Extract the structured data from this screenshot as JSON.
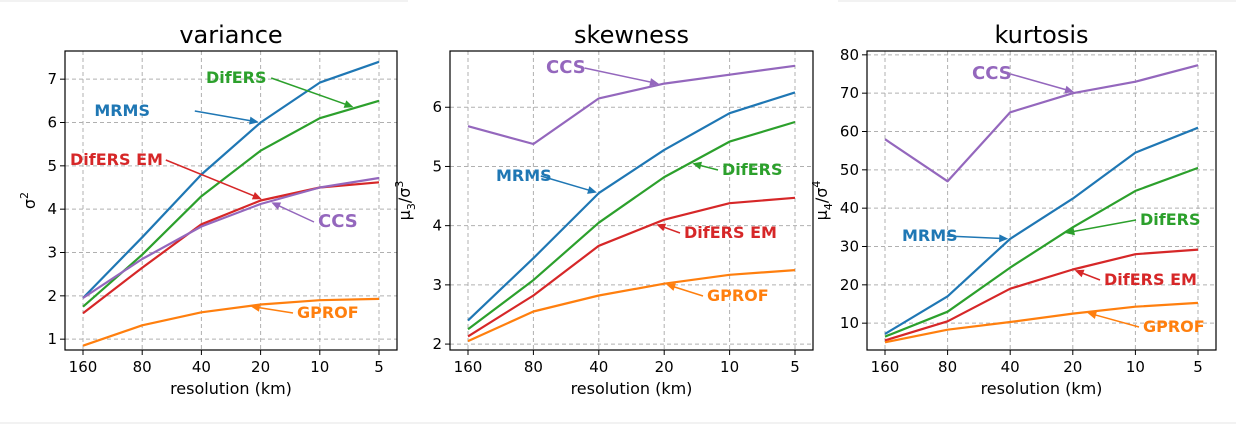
{
  "chart_data": [
    {
      "type": "line",
      "title": "variance",
      "xlabel": "resolution (km)",
      "ylabel": "σ2",
      "categories": [
        "160",
        "80",
        "40",
        "20",
        "10",
        "5"
      ],
      "ylim": [
        0.75,
        7.65
      ],
      "yticks": [
        1,
        2,
        3,
        4,
        5,
        6,
        7
      ],
      "grid": true,
      "series": [
        {
          "name": "MRMS",
          "color": "#1f77b4",
          "values": [
            1.95,
            3.35,
            4.8,
            6.0,
            6.92,
            7.4
          ]
        },
        {
          "name": "DifERS",
          "color": "#2ca02c",
          "values": [
            1.75,
            2.95,
            4.3,
            5.35,
            6.1,
            6.5
          ]
        },
        {
          "name": "DifERS EM",
          "color": "#d62728",
          "values": [
            1.6,
            2.65,
            3.65,
            4.2,
            4.5,
            4.62
          ]
        },
        {
          "name": "CCS",
          "color": "#9467bd",
          "values": [
            1.95,
            2.85,
            3.6,
            4.12,
            4.5,
            4.72
          ]
        },
        {
          "name": "GPROF",
          "color": "#ff7f0e",
          "values": [
            0.85,
            1.32,
            1.62,
            1.8,
            1.9,
            1.93
          ]
        }
      ],
      "annotations": [
        {
          "text": "DifERS",
          "color": "#2ca02c",
          "series": "DifERS",
          "point": 4.6
        },
        {
          "text": "MRMS",
          "color": "#1f77b4",
          "series": "MRMS",
          "point": 3.0
        },
        {
          "text": "DifERS EM",
          "color": "#d62728",
          "series": "DifERS EM",
          "point": 3.05
        },
        {
          "text": "CCS",
          "color": "#9467bd",
          "series": "CCS",
          "point": 3.15
        },
        {
          "text": "GPROF",
          "color": "#ff7f0e",
          "series": "GPROF",
          "point": 2.8
        }
      ]
    },
    {
      "type": "line",
      "title": "skewness",
      "xlabel": "resolution (km)",
      "ylabel": "μ3/σ3",
      "categories": [
        "160",
        "80",
        "40",
        "20",
        "10",
        "5"
      ],
      "ylim": [
        1.9,
        6.95
      ],
      "yticks": [
        2,
        3,
        4,
        5,
        6
      ],
      "grid": true,
      "series": [
        {
          "name": "CCS",
          "color": "#9467bd",
          "values": [
            5.68,
            5.38,
            6.15,
            6.4,
            6.55,
            6.7
          ]
        },
        {
          "name": "MRMS",
          "color": "#1f77b4",
          "values": [
            2.4,
            3.45,
            4.55,
            5.28,
            5.9,
            6.25
          ]
        },
        {
          "name": "DifERS",
          "color": "#2ca02c",
          "values": [
            2.25,
            3.08,
            4.05,
            4.82,
            5.42,
            5.75
          ]
        },
        {
          "name": "DifERS EM",
          "color": "#d62728",
          "values": [
            2.13,
            2.82,
            3.66,
            4.1,
            4.38,
            4.47
          ]
        },
        {
          "name": "GPROF",
          "color": "#ff7f0e",
          "values": [
            2.05,
            2.55,
            2.82,
            3.02,
            3.17,
            3.25
          ]
        }
      ],
      "annotations": [
        {
          "text": "CCS",
          "color": "#9467bd",
          "series": "CCS",
          "point": 2.95
        },
        {
          "text": "MRMS",
          "color": "#1f77b4",
          "series": "MRMS",
          "point": 2.0
        },
        {
          "text": "DifERS",
          "color": "#2ca02c",
          "series": "DifERS",
          "point": 3.4
        },
        {
          "text": "DifERS EM",
          "color": "#d62728",
          "series": "DifERS EM",
          "point": 2.85
        },
        {
          "text": "GPROF",
          "color": "#ff7f0e",
          "series": "GPROF",
          "point": 3.0
        }
      ]
    },
    {
      "type": "line",
      "title": "kurtosis",
      "xlabel": "resolution (km)",
      "ylabel": "μ4/σ4",
      "categories": [
        "160",
        "80",
        "40",
        "20",
        "10",
        "5"
      ],
      "ylim": [
        3,
        81
      ],
      "yticks": [
        10,
        20,
        30,
        40,
        50,
        60,
        70,
        80
      ],
      "grid": true,
      "series": [
        {
          "name": "CCS",
          "color": "#9467bd",
          "values": [
            58,
            47,
            65,
            70,
            73,
            77.3
          ]
        },
        {
          "name": "MRMS",
          "color": "#1f77b4",
          "values": [
            7.2,
            17,
            32,
            42.5,
            54.5,
            61
          ]
        },
        {
          "name": "DifERS",
          "color": "#2ca02c",
          "values": [
            6.5,
            13,
            24.5,
            35,
            44.5,
            50.5
          ]
        },
        {
          "name": "DifERS EM",
          "color": "#d62728",
          "values": [
            5.5,
            10.5,
            19,
            24,
            28,
            29.2
          ]
        },
        {
          "name": "GPROF",
          "color": "#ff7f0e",
          "values": [
            5,
            8.3,
            10.3,
            12.5,
            14.3,
            15.3
          ]
        }
      ],
      "annotations": [
        {
          "text": "CCS",
          "color": "#9467bd",
          "series": "CCS",
          "point": 3.05
        },
        {
          "text": "MRMS",
          "color": "#1f77b4",
          "series": "MRMS",
          "point": 2.0
        },
        {
          "text": "DifERS",
          "color": "#2ca02c",
          "series": "DifERS",
          "point": 2.85
        },
        {
          "text": "DifERS EM",
          "color": "#d62728",
          "series": "DifERS EM",
          "point": 3.0
        },
        {
          "text": "GPROF",
          "color": "#ff7f0e",
          "series": "GPROF",
          "point": 3.2
        }
      ]
    }
  ]
}
